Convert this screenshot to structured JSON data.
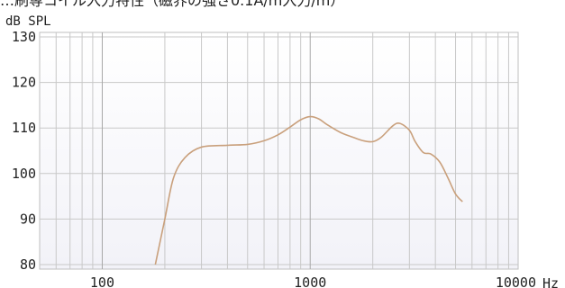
{
  "chart_data": {
    "type": "line",
    "title": "…刷専コイル入力特性（磁界の強さ0.1A/m入力/m）",
    "ylabel": "dB SPL",
    "xlabel": "Hz",
    "x_scale": "log",
    "xlim": [
      50,
      10000
    ],
    "ylim": [
      79,
      131
    ],
    "x_ticks": [
      {
        "value": 100,
        "label": "100"
      },
      {
        "value": 1000,
        "label": "1000"
      },
      {
        "value": 10000,
        "label": "10000"
      }
    ],
    "y_ticks": [
      {
        "value": 80,
        "label": "80"
      },
      {
        "value": 90,
        "label": "90"
      },
      {
        "value": 100,
        "label": "100"
      },
      {
        "value": 110,
        "label": "110"
      },
      {
        "value": 120,
        "label": "120"
      },
      {
        "value": 130,
        "label": "130"
      }
    ],
    "grid": true,
    "series": [
      {
        "color": "#c9a07c",
        "x": [
          180,
          200,
          220,
          250,
          300,
          400,
          500,
          600,
          700,
          800,
          900,
          1000,
          1100,
          1200,
          1400,
          1600,
          1800,
          2000,
          2200,
          2500,
          2700,
          3000,
          3200,
          3500,
          3800,
          4200,
          4600,
          5000,
          5400
        ],
        "y": [
          80,
          90,
          99,
          103.5,
          105.8,
          106.2,
          106.4,
          107.2,
          108.5,
          110.2,
          111.8,
          112.5,
          112.0,
          110.8,
          109.0,
          108.0,
          107.2,
          107.0,
          108.0,
          110.5,
          111.0,
          109.5,
          107.0,
          104.6,
          104.3,
          102.5,
          99.0,
          95.5,
          93.8
        ]
      }
    ]
  }
}
